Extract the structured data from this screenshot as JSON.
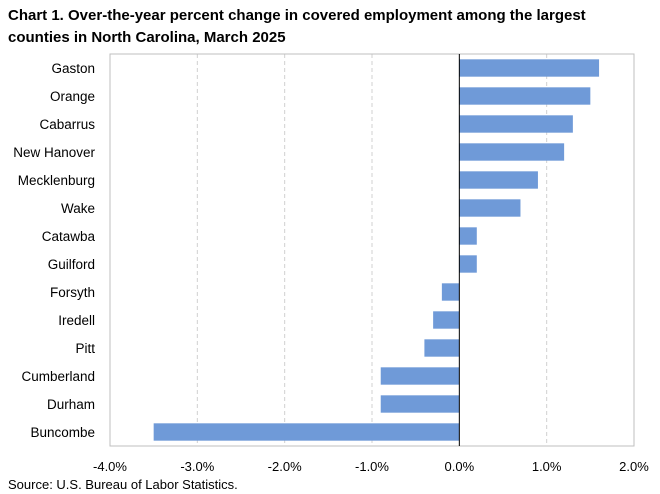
{
  "title": "Chart 1. Over-the-year percent change in covered employment among the largest counties in North Carolina, March 2025",
  "source": "Source: U.S. Bureau of Labor Statistics.",
  "chart_data": {
    "type": "bar",
    "orientation": "horizontal",
    "categories": [
      "Gaston",
      "Orange",
      "Cabarrus",
      "New Hanover",
      "Mecklenburg",
      "Wake",
      "Catawba",
      "Guilford",
      "Forsyth",
      "Iredell",
      "Pitt",
      "Cumberland",
      "Durham",
      "Buncombe"
    ],
    "values": [
      1.6,
      1.5,
      1.3,
      1.2,
      0.9,
      0.7,
      0.2,
      0.2,
      -0.2,
      -0.3,
      -0.4,
      -0.9,
      -0.9,
      -3.5
    ],
    "xlim": [
      -4.0,
      2.0
    ],
    "xticks": [
      -4.0,
      -3.0,
      -2.0,
      -1.0,
      0.0,
      1.0,
      2.0
    ],
    "xtick_labels": [
      "-4.0%",
      "-3.0%",
      "-2.0%",
      "-1.0%",
      "0.0%",
      "1.0%",
      "2.0%"
    ],
    "gridlines": "vertical dashed",
    "bar_color": "#6f9ad8"
  }
}
